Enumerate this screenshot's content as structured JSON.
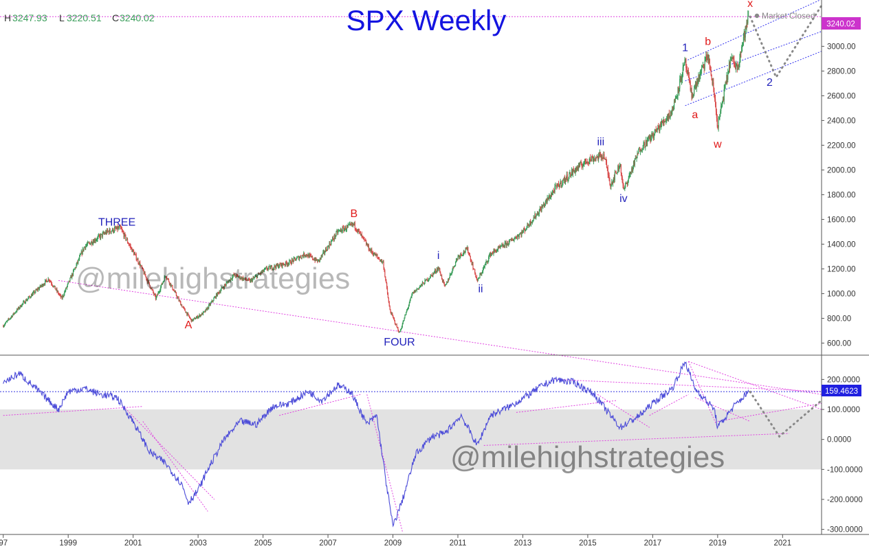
{
  "title": "SPX Weekly",
  "ohlc": {
    "h_label": "H",
    "h_value": "3247.93",
    "l_label": "L",
    "l_value": "3220.51",
    "c_label": "C",
    "c_value": "3240.02"
  },
  "market_status": "Market Closed",
  "watermark": "@milehighstrategies",
  "colors": {
    "up": "#3a9d5a",
    "down": "#d94b4b",
    "title": "#1414e0",
    "wave_blue": "#2222bb",
    "wave_red": "#e01818",
    "channel": "#3030ee",
    "trend_pink": "#e040e0",
    "osc_line": "#4a4ad8",
    "band": "#e2e2e2",
    "forecast": "#888888"
  },
  "chart_data": [
    {
      "type": "line",
      "name": "SPX price (weekly candles)",
      "x_ticks": [
        "97",
        "1999",
        "2001",
        "2003",
        "2005",
        "2007",
        "2009",
        "2011",
        "2013",
        "2015",
        "2017",
        "2019",
        "2021"
      ],
      "y_ticks": [
        "600.00",
        "800.00",
        "1000.00",
        "1200.00",
        "1400.00",
        "1600.00",
        "1800.00",
        "2000.00",
        "2200.00",
        "2400.00",
        "2600.00",
        "2800.00",
        "3000.00",
        "3200.00"
      ],
      "ylim": [
        530,
        3330
      ],
      "xlim": [
        1996.9,
        2022.2
      ],
      "last_value_label": "3240.02",
      "price_path": [
        [
          1997.0,
          740
        ],
        [
          1997.6,
          920
        ],
        [
          1998.4,
          1120
        ],
        [
          1998.8,
          960
        ],
        [
          1999.5,
          1380
        ],
        [
          2000.2,
          1500
        ],
        [
          2000.6,
          1530
        ],
        [
          2001.2,
          1240
        ],
        [
          2001.7,
          960
        ],
        [
          2002.0,
          1150
        ],
        [
          2002.5,
          900
        ],
        [
          2002.8,
          780
        ],
        [
          2003.2,
          850
        ],
        [
          2003.6,
          1000
        ],
        [
          2004.1,
          1150
        ],
        [
          2004.6,
          1100
        ],
        [
          2005.1,
          1200
        ],
        [
          2005.8,
          1250
        ],
        [
          2006.3,
          1320
        ],
        [
          2006.7,
          1260
        ],
        [
          2007.3,
          1500
        ],
        [
          2007.8,
          1560
        ],
        [
          2008.3,
          1350
        ],
        [
          2008.7,
          1250
        ],
        [
          2008.9,
          870
        ],
        [
          2009.2,
          680
        ],
        [
          2009.6,
          1000
        ],
        [
          2010.2,
          1150
        ],
        [
          2010.4,
          1210
        ],
        [
          2010.6,
          1050
        ],
        [
          2011.0,
          1300
        ],
        [
          2011.3,
          1360
        ],
        [
          2011.6,
          1100
        ],
        [
          2012.0,
          1320
        ],
        [
          2012.6,
          1420
        ],
        [
          2013.0,
          1500
        ],
        [
          2013.6,
          1700
        ],
        [
          2014.0,
          1850
        ],
        [
          2014.6,
          2000
        ],
        [
          2015.0,
          2080
        ],
        [
          2015.5,
          2120
        ],
        [
          2015.7,
          1880
        ],
        [
          2016.0,
          2050
        ],
        [
          2016.1,
          1830
        ],
        [
          2016.6,
          2170
        ],
        [
          2017.0,
          2280
        ],
        [
          2017.6,
          2480
        ],
        [
          2018.0,
          2870
        ],
        [
          2018.2,
          2600
        ],
        [
          2018.7,
          2930
        ],
        [
          2018.9,
          2600
        ],
        [
          2019.0,
          2350
        ],
        [
          2019.4,
          2900
        ],
        [
          2019.6,
          2830
        ],
        [
          2019.95,
          3240
        ]
      ],
      "annotations": [
        {
          "text": "THREE",
          "x": 2000.5,
          "y": 1550,
          "color": "wave_blue"
        },
        {
          "text": "A",
          "x": 2002.7,
          "y": 720,
          "color": "wave_red"
        },
        {
          "text": "B",
          "x": 2007.8,
          "y": 1620,
          "color": "wave_red"
        },
        {
          "text": "FOUR",
          "x": 2009.2,
          "y": 580,
          "color": "wave_blue"
        },
        {
          "text": "i",
          "x": 2010.4,
          "y": 1280,
          "color": "wave_blue"
        },
        {
          "text": "ii",
          "x": 2011.7,
          "y": 1010,
          "color": "wave_blue"
        },
        {
          "text": "iii",
          "x": 2015.4,
          "y": 2200,
          "color": "wave_blue"
        },
        {
          "text": "iv",
          "x": 2016.1,
          "y": 1740,
          "color": "wave_blue"
        },
        {
          "text": "1",
          "x": 2018.0,
          "y": 2960,
          "color": "wave_blue"
        },
        {
          "text": "a",
          "x": 2018.3,
          "y": 2420,
          "color": "wave_red"
        },
        {
          "text": "b",
          "x": 2018.7,
          "y": 3010,
          "color": "wave_red"
        },
        {
          "text": "w",
          "x": 2019.0,
          "y": 2180,
          "color": "wave_red"
        },
        {
          "text": "x",
          "x": 2020.0,
          "y": 3320,
          "color": "wave_red"
        },
        {
          "text": "2",
          "x": 2020.6,
          "y": 2680,
          "color": "wave_blue"
        }
      ],
      "channel_lines": [
        [
          [
            2018.0,
            2880
          ],
          [
            2022.2,
            3380
          ]
        ],
        [
          [
            2018.0,
            2720
          ],
          [
            2022.2,
            3120
          ]
        ],
        [
          [
            2018.0,
            2520
          ],
          [
            2022.2,
            2960
          ]
        ]
      ],
      "forecast_path": [
        [
          2020.0,
          3240
        ],
        [
          2020.8,
          2750
        ],
        [
          2022.2,
          3330
        ]
      ]
    },
    {
      "type": "line",
      "name": "Oscillator",
      "y_ticks": [
        "200.0000",
        "100.0000",
        "0.0000",
        "-100.0000",
        "-200.0000",
        "-300.0000"
      ],
      "ylim": [
        -310,
        265
      ],
      "band": [
        -100,
        100
      ],
      "last_value_label": "159.4623",
      "last_value": 159.46,
      "osc_path": [
        [
          1997.0,
          190
        ],
        [
          1997.5,
          220
        ],
        [
          1998.0,
          170
        ],
        [
          1998.7,
          100
        ],
        [
          1999.0,
          160
        ],
        [
          1999.5,
          170
        ],
        [
          2000.0,
          150
        ],
        [
          2000.5,
          140
        ],
        [
          2001.0,
          60
        ],
        [
          2001.5,
          -40
        ],
        [
          2002.0,
          -80
        ],
        [
          2002.5,
          -150
        ],
        [
          2002.7,
          -210
        ],
        [
          2003.0,
          -170
        ],
        [
          2003.3,
          -100
        ],
        [
          2003.8,
          0
        ],
        [
          2004.3,
          60
        ],
        [
          2004.8,
          50
        ],
        [
          2005.3,
          110
        ],
        [
          2005.8,
          120
        ],
        [
          2006.4,
          160
        ],
        [
          2006.8,
          130
        ],
        [
          2007.3,
          180
        ],
        [
          2007.7,
          160
        ],
        [
          2008.2,
          50
        ],
        [
          2008.5,
          80
        ],
        [
          2008.8,
          -150
        ],
        [
          2009.0,
          -290
        ],
        [
          2009.3,
          -200
        ],
        [
          2009.7,
          -50
        ],
        [
          2010.2,
          10
        ],
        [
          2010.6,
          20
        ],
        [
          2011.1,
          80
        ],
        [
          2011.6,
          -20
        ],
        [
          2012.0,
          80
        ],
        [
          2012.6,
          110
        ],
        [
          2013.2,
          150
        ],
        [
          2013.6,
          180
        ],
        [
          2014.0,
          200
        ],
        [
          2014.6,
          190
        ],
        [
          2015.2,
          150
        ],
        [
          2015.7,
          80
        ],
        [
          2016.0,
          40
        ],
        [
          2016.6,
          80
        ],
        [
          2017.0,
          120
        ],
        [
          2017.6,
          170
        ],
        [
          2018.0,
          260
        ],
        [
          2018.3,
          170
        ],
        [
          2018.9,
          100
        ],
        [
          2019.0,
          40
        ],
        [
          2019.5,
          110
        ],
        [
          2019.95,
          159
        ]
      ],
      "trend_lines": [
        [
          [
            1998.7,
            530
          ],
          [
            2022.2,
            150
          ]
        ],
        [
          [
            1997.0,
            80
          ],
          [
            2001.3,
            110
          ]
        ],
        [
          [
            2000.7,
            110
          ],
          [
            2003.5,
            -200
          ]
        ],
        [
          [
            2001.3,
            60
          ],
          [
            2003.3,
            -240
          ]
        ],
        [
          [
            2005.5,
            80
          ],
          [
            2008.0,
            150
          ]
        ],
        [
          [
            2008.2,
            150
          ],
          [
            2009.3,
            -310
          ]
        ],
        [
          [
            2011.8,
            -20
          ],
          [
            2021.2,
            20
          ]
        ],
        [
          [
            2012.8,
            90
          ],
          [
            2015.9,
            130
          ]
        ],
        [
          [
            2015.3,
            150
          ],
          [
            2016.9,
            40
          ]
        ],
        [
          [
            2016.9,
            80
          ],
          [
            2018.1,
            150
          ]
        ],
        [
          [
            2018.1,
            260
          ],
          [
            2022.2,
            100
          ]
        ],
        [
          [
            2018.1,
            260
          ],
          [
            2019.0,
            40
          ]
        ],
        [
          [
            2018.3,
            140
          ],
          [
            2020.0,
            60
          ]
        ],
        [
          [
            2019.0,
            60
          ],
          [
            2022.2,
            120
          ]
        ],
        [
          [
            2014.0,
            200
          ],
          [
            2022.2,
            160
          ]
        ]
      ],
      "forecast_path": [
        [
          2020.0,
          159
        ],
        [
          2020.9,
          10
        ],
        [
          2022.2,
          130
        ]
      ]
    }
  ]
}
